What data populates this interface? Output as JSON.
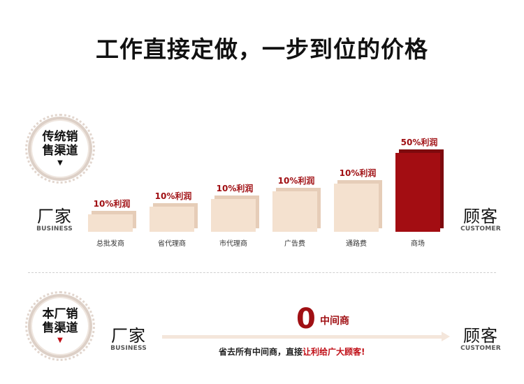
{
  "header": {
    "title": "工作直接定做，一步到位的价格"
  },
  "traditional": {
    "badge_line1": "传统销",
    "badge_line2": "售渠道",
    "badge_arrow": "▼",
    "left_cn": "厂家",
    "left_en": "BUSINESS",
    "right_cn": "顾客",
    "right_en": "CUSTOMER",
    "bars": [
      {
        "label": "10%利润",
        "category": "总批发商",
        "level": 1
      },
      {
        "label": "10%利润",
        "category": "省代理商",
        "level": 2
      },
      {
        "label": "10%利润",
        "category": "市代理商",
        "level": 3
      },
      {
        "label": "10%利润",
        "category": "广告费",
        "level": 4
      },
      {
        "label": "10%利润",
        "category": "通路费",
        "level": 5
      },
      {
        "label": "50%利润",
        "category": "商场",
        "level": 9
      }
    ]
  },
  "direct": {
    "badge_line1": "本厂销",
    "badge_line2": "售渠道",
    "badge_arrow": "▼",
    "left_cn": "厂家",
    "left_en": "BUSINESS",
    "right_cn": "顾客",
    "right_en": "CUSTOMER",
    "zero": "0",
    "zero_label": "中间商",
    "slogan_part1": "省去所有中间商，直接",
    "slogan_part2": "让利给广大顾客!"
  },
  "colors": {
    "bar_light": "#f4e1cf",
    "bar_light_side": "#e6cdb8",
    "bar_dark": "#a30d12",
    "bar_dark_side": "#7e0a0e",
    "accent": "#a01014"
  }
}
